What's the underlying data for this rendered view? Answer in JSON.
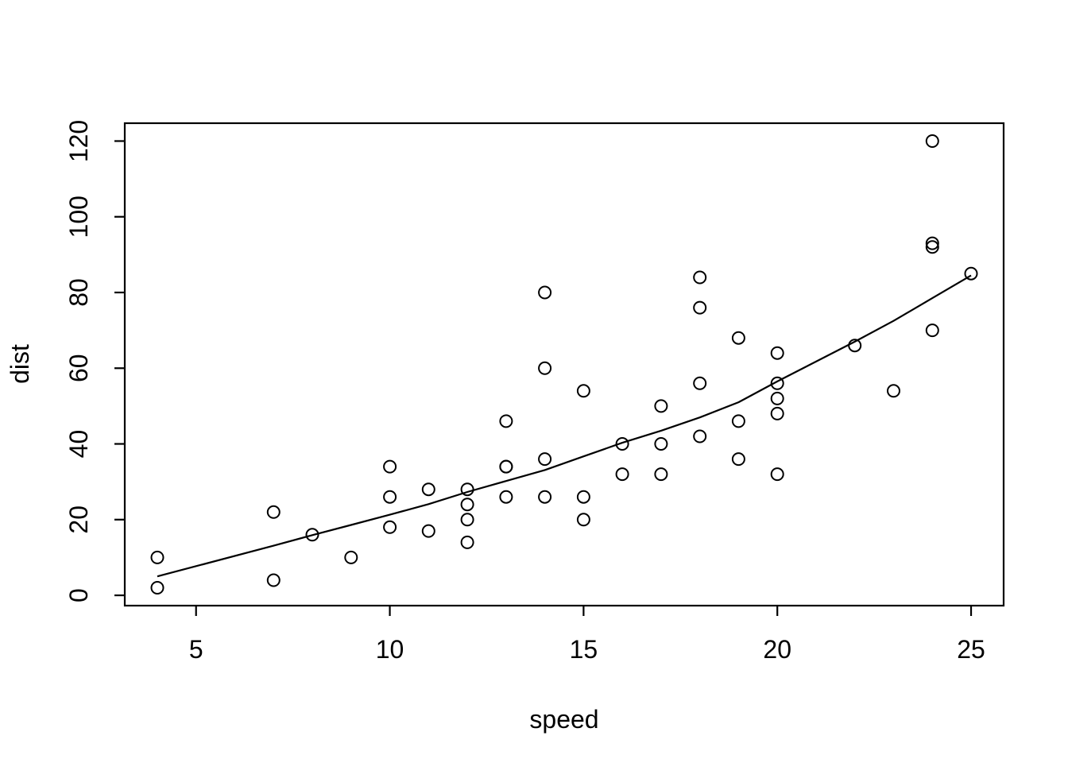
{
  "figure": {
    "kind": "r-base-scatterplot",
    "background": "#ffffff"
  },
  "colors": {
    "foreground": "#000000",
    "background": "#ffffff"
  },
  "chart_data": {
    "type": "scatter",
    "title": "",
    "xlabel": "speed",
    "ylabel": "dist",
    "x_ticks": [
      5,
      10,
      15,
      20,
      25
    ],
    "y_ticks": [
      0,
      20,
      40,
      60,
      80,
      100,
      120
    ],
    "xlim": [
      3.16,
      25.84
    ],
    "ylim": [
      -2.72,
      124.72
    ],
    "grid": false,
    "legend": null,
    "marker": "open-circle",
    "points": {
      "x": [
        4,
        4,
        7,
        7,
        8,
        9,
        10,
        10,
        10,
        11,
        11,
        12,
        12,
        12,
        12,
        13,
        13,
        13,
        13,
        14,
        14,
        14,
        14,
        15,
        15,
        15,
        16,
        16,
        17,
        17,
        17,
        18,
        18,
        18,
        18,
        19,
        19,
        19,
        20,
        20,
        20,
        20,
        20,
        22,
        23,
        24,
        24,
        24,
        24,
        25
      ],
      "y": [
        2,
        10,
        4,
        22,
        16,
        10,
        18,
        26,
        34,
        17,
        28,
        14,
        20,
        24,
        28,
        26,
        34,
        34,
        46,
        26,
        36,
        60,
        80,
        20,
        26,
        54,
        32,
        40,
        32,
        40,
        50,
        42,
        56,
        76,
        84,
        36,
        46,
        68,
        32,
        48,
        52,
        56,
        64,
        66,
        54,
        70,
        92,
        93,
        120,
        85
      ]
    },
    "smooth_line": {
      "name": "lowess-smooth",
      "x": [
        4,
        7,
        8,
        9,
        10,
        11,
        12,
        13,
        14,
        15,
        16,
        17,
        18,
        19,
        20,
        22,
        23,
        24,
        25
      ],
      "y": [
        5.0,
        13.1,
        15.9,
        18.6,
        21.3,
        24.1,
        27.3,
        30.2,
        33.1,
        36.7,
        40.3,
        43.5,
        47.0,
        51.0,
        56.5,
        67.0,
        72.5,
        78.5,
        84.5
      ]
    }
  }
}
